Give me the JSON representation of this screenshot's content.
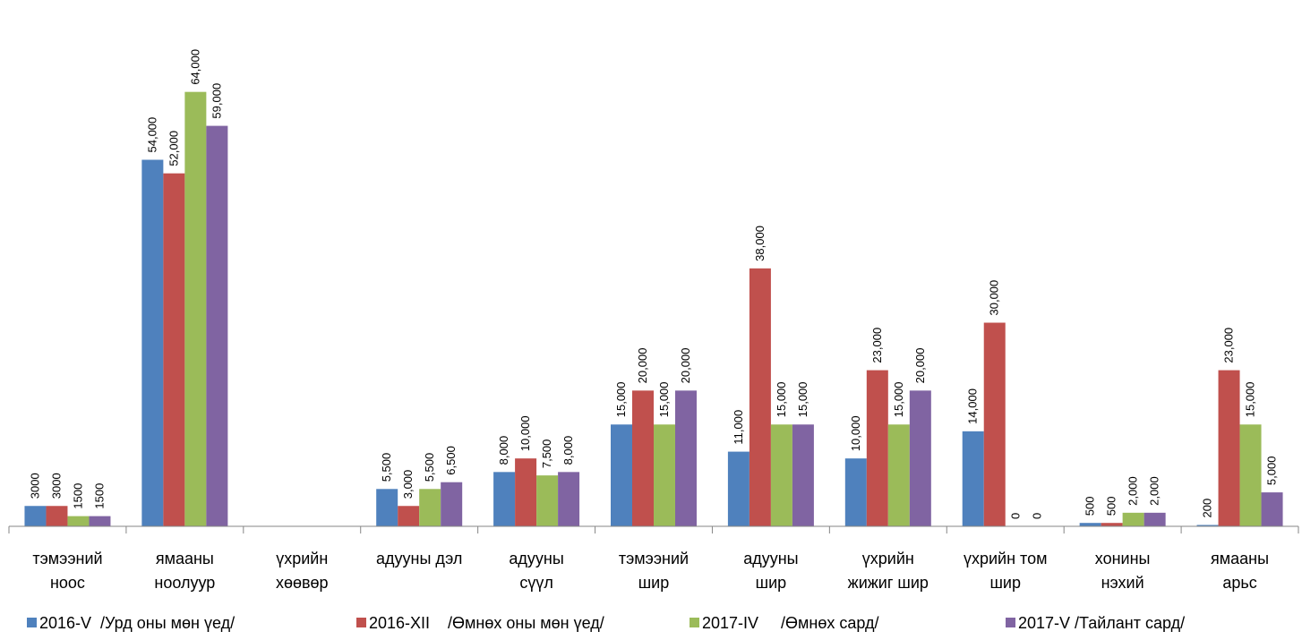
{
  "chart_data": {
    "type": "bar",
    "title": "",
    "xlabel": "",
    "ylabel": "",
    "ylim": [
      0,
      72000
    ],
    "grid": false,
    "legend_position": "bottom",
    "categories": [
      [
        "тэмээний",
        "ноос"
      ],
      [
        "ямааны",
        "ноолуур"
      ],
      [
        "үхрийн",
        "хөөвөр"
      ],
      [
        "адууны дэл"
      ],
      [
        "адууны",
        "сүүл"
      ],
      [
        "тэмээний",
        "шир"
      ],
      [
        "адууны",
        "шир"
      ],
      [
        "үхрийн",
        "жижиг шир"
      ],
      [
        "үхрийн том",
        "шир"
      ],
      [
        "хонины",
        "нэхий"
      ],
      [
        "ямааны",
        "арьс"
      ]
    ],
    "series": [
      {
        "name": "2016-V  /Урд оны мөн үед/",
        "color": "#4F81BD",
        "values": [
          3000,
          54000,
          null,
          5500,
          8000,
          15000,
          11000,
          10000,
          14000,
          500,
          200
        ],
        "labels": [
          "3000",
          "54,000",
          "",
          "5,500",
          "8,000",
          "15,000",
          "11,000",
          "10,000",
          "14,000",
          "500",
          "200"
        ]
      },
      {
        "name": "2016-XII    /Өмнөх оны мөн үед/",
        "color": "#C0504D",
        "values": [
          3000,
          52000,
          null,
          3000,
          10000,
          20000,
          38000,
          23000,
          30000,
          500,
          23000
        ],
        "labels": [
          "3000",
          "52,000",
          "",
          "3,000",
          "10,000",
          "20,000",
          "38,000",
          "23,000",
          "30,000",
          "500",
          "23,000"
        ]
      },
      {
        "name": "2017-IV     /Өмнөх сард/",
        "color": "#9BBB59",
        "values": [
          1500,
          64000,
          null,
          5500,
          7500,
          15000,
          15000,
          15000,
          0,
          2000,
          15000
        ],
        "labels": [
          "1500",
          "64,000",
          "",
          "5,500",
          "7,500",
          "15,000",
          "15,000",
          "15,000",
          "0",
          "2,000",
          "15,000"
        ]
      },
      {
        "name": "2017-V /Тайлант сард/",
        "color": "#8064A2",
        "values": [
          1500,
          59000,
          null,
          6500,
          8000,
          20000,
          15000,
          20000,
          0,
          2000,
          5000
        ],
        "labels": [
          "1500",
          "59,000",
          "",
          "6,500",
          "8,000",
          "20,000",
          "15,000",
          "20,000",
          "0",
          "2,000",
          "5,000"
        ]
      }
    ]
  }
}
